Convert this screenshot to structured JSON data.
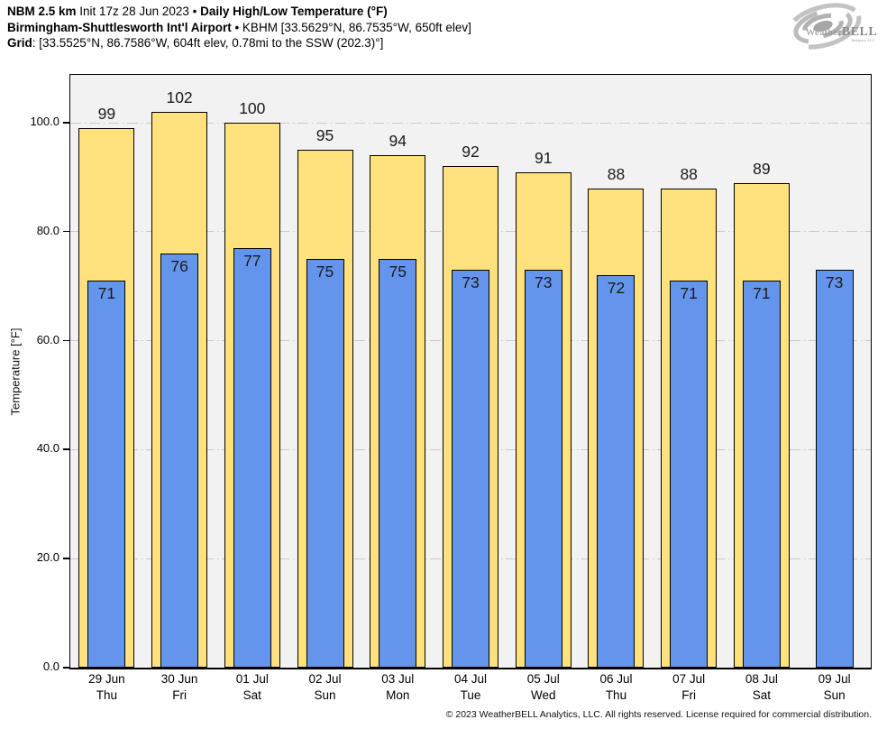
{
  "header": {
    "line1": {
      "product": "NBM 2.5 km",
      "init": " Init 17z 28 Jun 2023 • ",
      "title": "Daily High/Low Temperature (°F)"
    },
    "line2": {
      "station": "Birmingham-Shuttlesworth Int'l Airport",
      "details": " • KBHM [33.5629°N, 86.7535°W, 650ft elev]"
    },
    "line3": {
      "label": "Grid",
      "details": ": [33.5525°N, 86.7586°W, 604ft elev, 0.78mi to the SSW (202.3)°]"
    }
  },
  "logo": {
    "brand_light": "Weather",
    "brand_bold": "BELL",
    "subtitle": "Analytics LLC"
  },
  "footer": {
    "copyright": "© 2023 WeatherBELL Analytics, LLC. All rights reserved. License required for commercial distribution."
  },
  "chart_data": {
    "type": "bar",
    "title": "Daily High/Low Temperature (°F)",
    "ylabel": "Temperature [°F]",
    "ylim": [
      0,
      108.8
    ],
    "yticks": [
      0,
      20,
      40,
      60,
      80,
      100
    ],
    "ytick_labels": [
      "0.0",
      "20.0",
      "40.0",
      "60.0",
      "80.0",
      "100.0"
    ],
    "grid": "horizontal dash-dot, drawn behind bars",
    "legend_position": "none",
    "plot_bg": "#F2F2F2",
    "bar_outline": "#000000",
    "categories": [
      {
        "date": "29 Jun",
        "day": "Thu"
      },
      {
        "date": "30 Jun",
        "day": "Fri"
      },
      {
        "date": "01 Jul",
        "day": "Sat"
      },
      {
        "date": "02 Jul",
        "day": "Sun"
      },
      {
        "date": "03 Jul",
        "day": "Mon"
      },
      {
        "date": "04 Jul",
        "day": "Tue"
      },
      {
        "date": "05 Jul",
        "day": "Wed"
      },
      {
        "date": "06 Jul",
        "day": "Thu"
      },
      {
        "date": "07 Jul",
        "day": "Fri"
      },
      {
        "date": "08 Jul",
        "day": "Sat"
      },
      {
        "date": "09 Jul",
        "day": "Sun"
      }
    ],
    "series": [
      {
        "name": "High",
        "color": "#FFE17D",
        "values": [
          99,
          102,
          100,
          95,
          94,
          92,
          91,
          88,
          88,
          89,
          null
        ]
      },
      {
        "name": "Low",
        "color": "#6495ED",
        "values": [
          71,
          76,
          77,
          75,
          75,
          73,
          73,
          72,
          71,
          71,
          73
        ]
      }
    ]
  }
}
